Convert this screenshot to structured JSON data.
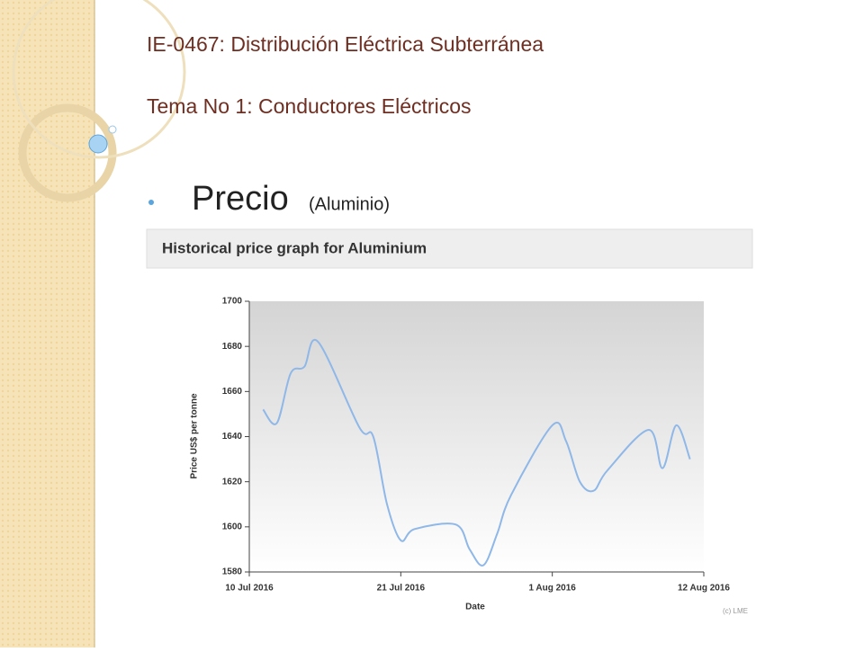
{
  "slide": {
    "title": "IE-0467: Distribución Eléctrica Subterránea",
    "subtitle": "Tema No 1: Conductores Eléctricos",
    "bullet": "Precio",
    "bullet_note": "(Aluminio)"
  },
  "chart_data": {
    "type": "line",
    "title": "Historical price graph for Aluminium",
    "x_label": "Date",
    "y_label": "Price US$ per tonne",
    "credit": "(c) LME",
    "x": [
      "11 Jul 2016",
      "12 Jul 2016",
      "13 Jul 2016",
      "14 Jul 2016",
      "15 Jul 2016",
      "18 Jul 2016",
      "19 Jul 2016",
      "20 Jul 2016",
      "21 Jul 2016",
      "22 Jul 2016",
      "25 Jul 2016",
      "26 Jul 2016",
      "27 Jul 2016",
      "28 Jul 2016",
      "29 Jul 2016",
      "1 Aug 2016",
      "2 Aug 2016",
      "3 Aug 2016",
      "4 Aug 2016",
      "5 Aug 2016",
      "8 Aug 2016",
      "9 Aug 2016",
      "10 Aug 2016",
      "11 Aug 2016"
    ],
    "series": [
      {
        "name": "Aluminium",
        "color": "#8fb8e8",
        "values": [
          1652,
          1646,
          1668,
          1671,
          1682,
          1644,
          1640,
          1610,
          1594,
          1599,
          1601,
          1590,
          1583,
          1597,
          1614,
          1645,
          1638,
          1620,
          1616,
          1625,
          1643,
          1626,
          1645,
          1630
        ]
      }
    ],
    "xlim": [
      "10 Jul 2016",
      "12 Aug 2016"
    ],
    "xticks": [
      "10 Jul 2016",
      "21 Jul 2016",
      "1 Aug 2016",
      "12 Aug 2016"
    ],
    "ylim": [
      1580,
      1700
    ],
    "yticks": [
      1580,
      1600,
      1620,
      1640,
      1660,
      1680,
      1700
    ]
  }
}
